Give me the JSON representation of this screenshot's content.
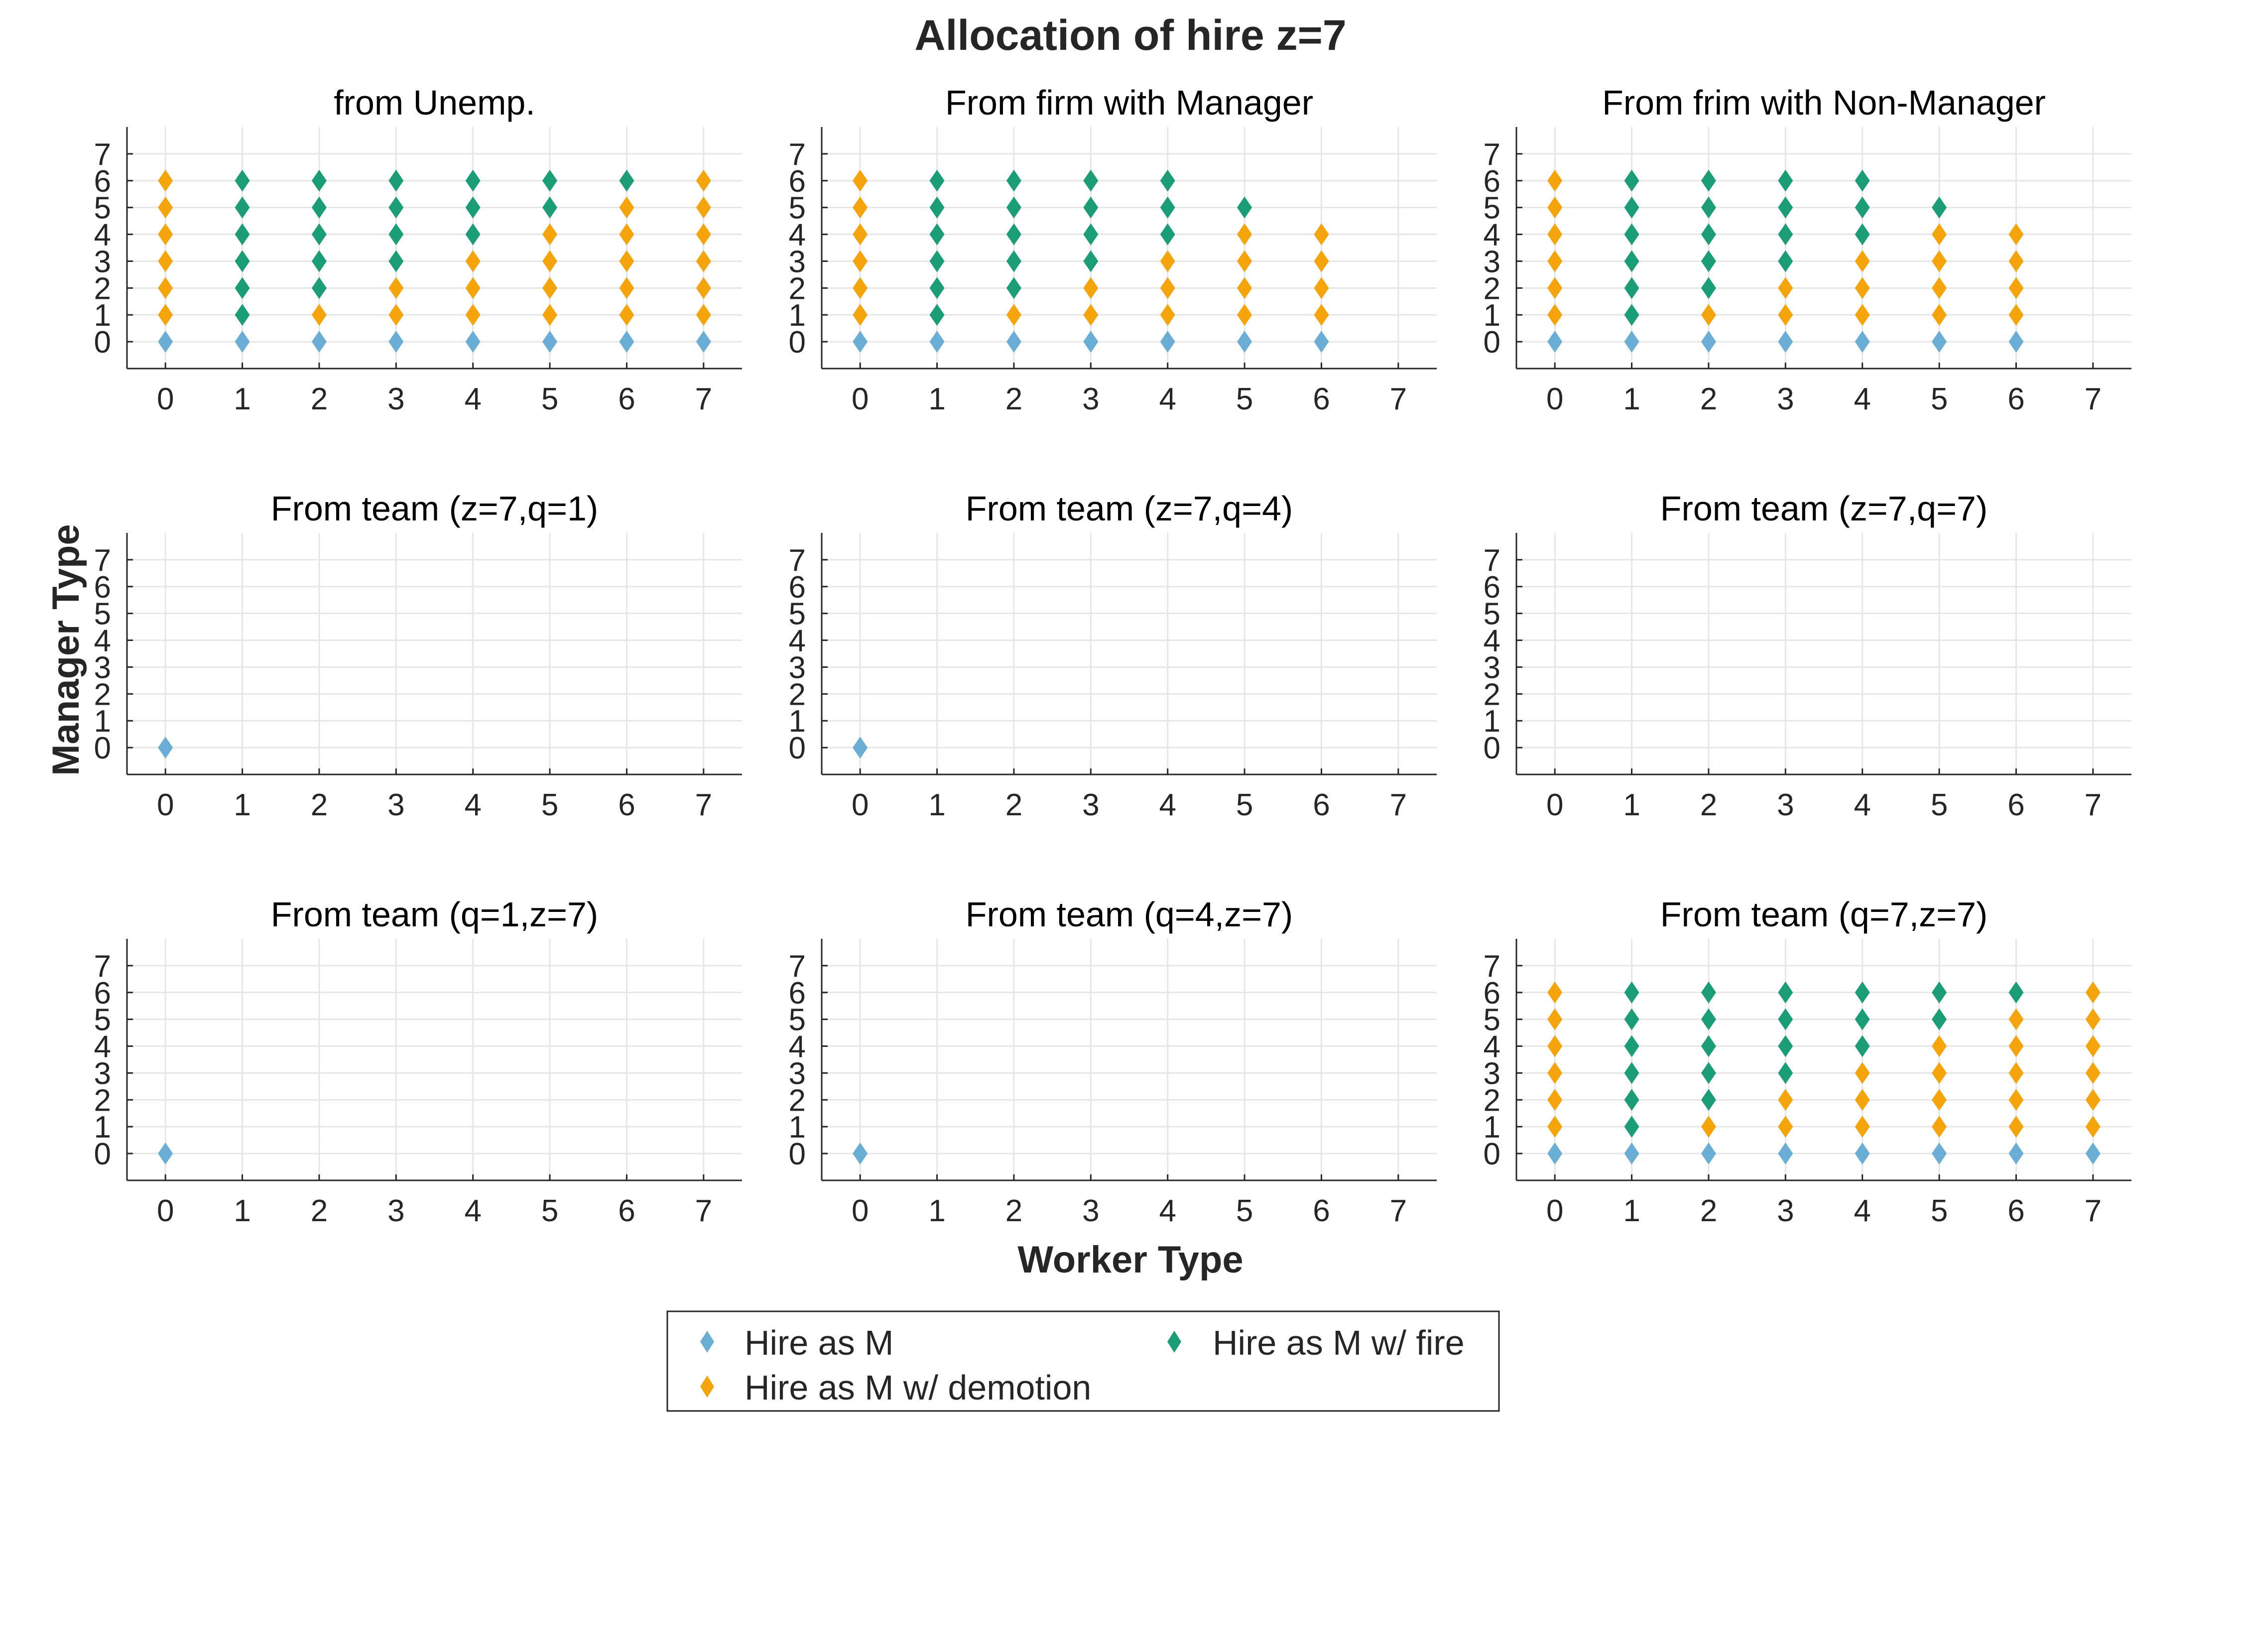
{
  "figure": {
    "title": "Allocation of hire z=7",
    "xlabel": "Worker Type",
    "ylabel": "Manager Type"
  },
  "legend": {
    "placement": "bottom-center",
    "entries": [
      {
        "key": "hire",
        "label": "Hire as M",
        "color": "#6aaed6"
      },
      {
        "key": "fire",
        "label": "Hire as M w/ fire",
        "color": "#1b9e77"
      },
      {
        "key": "demotion",
        "label": "Hire as M w/ demotion",
        "color": "#f5a40c"
      }
    ]
  },
  "marker_icon": "diamond-icon",
  "chart_data": [
    {
      "type": "scatter",
      "title": "from Unemp.",
      "xlim": [
        -0.5,
        7.5
      ],
      "ylim": [
        -1,
        8
      ],
      "grid": true,
      "xticks": [
        "0",
        "1",
        "2",
        "3",
        "4",
        "5",
        "6",
        "7"
      ],
      "yticks": [
        "0",
        "1",
        "2",
        "3",
        "4",
        "5",
        "6",
        "7"
      ],
      "series": {
        "hire": [
          [
            0,
            0
          ],
          [
            1,
            0
          ],
          [
            2,
            0
          ],
          [
            3,
            0
          ],
          [
            4,
            0
          ],
          [
            5,
            0
          ],
          [
            6,
            0
          ],
          [
            7,
            0
          ]
        ],
        "fire": [
          [
            1,
            1
          ],
          [
            1,
            2
          ],
          [
            1,
            3
          ],
          [
            1,
            4
          ],
          [
            1,
            5
          ],
          [
            1,
            6
          ],
          [
            2,
            2
          ],
          [
            2,
            3
          ],
          [
            2,
            4
          ],
          [
            2,
            5
          ],
          [
            2,
            6
          ],
          [
            3,
            3
          ],
          [
            3,
            4
          ],
          [
            3,
            5
          ],
          [
            3,
            6
          ],
          [
            4,
            4
          ],
          [
            4,
            5
          ],
          [
            4,
            6
          ],
          [
            5,
            5
          ],
          [
            5,
            6
          ],
          [
            6,
            6
          ]
        ],
        "demotion": [
          [
            0,
            1
          ],
          [
            0,
            2
          ],
          [
            0,
            3
          ],
          [
            0,
            4
          ],
          [
            0,
            5
          ],
          [
            0,
            6
          ],
          [
            2,
            1
          ],
          [
            3,
            1
          ],
          [
            3,
            2
          ],
          [
            4,
            1
          ],
          [
            4,
            2
          ],
          [
            4,
            3
          ],
          [
            5,
            1
          ],
          [
            5,
            2
          ],
          [
            5,
            3
          ],
          [
            5,
            4
          ],
          [
            6,
            1
          ],
          [
            6,
            2
          ],
          [
            6,
            3
          ],
          [
            6,
            4
          ],
          [
            6,
            5
          ],
          [
            7,
            1
          ],
          [
            7,
            2
          ],
          [
            7,
            3
          ],
          [
            7,
            4
          ],
          [
            7,
            5
          ],
          [
            7,
            6
          ]
        ]
      }
    },
    {
      "type": "scatter",
      "title": "From firm with Manager",
      "xlim": [
        -0.5,
        7.5
      ],
      "ylim": [
        -1,
        8
      ],
      "grid": true,
      "xticks": [
        "0",
        "1",
        "2",
        "3",
        "4",
        "5",
        "6",
        "7"
      ],
      "yticks": [
        "0",
        "1",
        "2",
        "3",
        "4",
        "5",
        "6",
        "7"
      ],
      "series": {
        "hire": [
          [
            0,
            0
          ],
          [
            1,
            0
          ],
          [
            2,
            0
          ],
          [
            3,
            0
          ],
          [
            4,
            0
          ],
          [
            5,
            0
          ],
          [
            6,
            0
          ]
        ],
        "fire": [
          [
            1,
            1
          ],
          [
            1,
            2
          ],
          [
            1,
            3
          ],
          [
            1,
            4
          ],
          [
            1,
            5
          ],
          [
            1,
            6
          ],
          [
            2,
            2
          ],
          [
            2,
            3
          ],
          [
            2,
            4
          ],
          [
            2,
            5
          ],
          [
            2,
            6
          ],
          [
            3,
            3
          ],
          [
            3,
            4
          ],
          [
            3,
            5
          ],
          [
            3,
            6
          ],
          [
            4,
            4
          ],
          [
            4,
            5
          ],
          [
            4,
            6
          ],
          [
            5,
            5
          ]
        ],
        "demotion": [
          [
            0,
            1
          ],
          [
            0,
            2
          ],
          [
            0,
            3
          ],
          [
            0,
            4
          ],
          [
            0,
            5
          ],
          [
            0,
            6
          ],
          [
            2,
            1
          ],
          [
            3,
            1
          ],
          [
            3,
            2
          ],
          [
            4,
            1
          ],
          [
            4,
            2
          ],
          [
            4,
            3
          ],
          [
            5,
            1
          ],
          [
            5,
            2
          ],
          [
            5,
            3
          ],
          [
            5,
            4
          ],
          [
            6,
            1
          ],
          [
            6,
            2
          ],
          [
            6,
            3
          ],
          [
            6,
            4
          ]
        ]
      }
    },
    {
      "type": "scatter",
      "title": "From frim with Non-Manager",
      "xlim": [
        -0.5,
        7.5
      ],
      "ylim": [
        -1,
        8
      ],
      "grid": true,
      "xticks": [
        "0",
        "1",
        "2",
        "3",
        "4",
        "5",
        "6",
        "7"
      ],
      "yticks": [
        "0",
        "1",
        "2",
        "3",
        "4",
        "5",
        "6",
        "7"
      ],
      "series": {
        "hire": [
          [
            0,
            0
          ],
          [
            1,
            0
          ],
          [
            2,
            0
          ],
          [
            3,
            0
          ],
          [
            4,
            0
          ],
          [
            5,
            0
          ],
          [
            6,
            0
          ]
        ],
        "fire": [
          [
            1,
            1
          ],
          [
            1,
            2
          ],
          [
            1,
            3
          ],
          [
            1,
            4
          ],
          [
            1,
            5
          ],
          [
            1,
            6
          ],
          [
            2,
            2
          ],
          [
            2,
            3
          ],
          [
            2,
            4
          ],
          [
            2,
            5
          ],
          [
            2,
            6
          ],
          [
            3,
            3
          ],
          [
            3,
            4
          ],
          [
            3,
            5
          ],
          [
            3,
            6
          ],
          [
            4,
            4
          ],
          [
            4,
            5
          ],
          [
            4,
            6
          ],
          [
            5,
            5
          ]
        ],
        "demotion": [
          [
            0,
            1
          ],
          [
            0,
            2
          ],
          [
            0,
            3
          ],
          [
            0,
            4
          ],
          [
            0,
            5
          ],
          [
            0,
            6
          ],
          [
            2,
            1
          ],
          [
            3,
            1
          ],
          [
            3,
            2
          ],
          [
            4,
            1
          ],
          [
            4,
            2
          ],
          [
            4,
            3
          ],
          [
            5,
            1
          ],
          [
            5,
            2
          ],
          [
            5,
            3
          ],
          [
            5,
            4
          ],
          [
            6,
            1
          ],
          [
            6,
            2
          ],
          [
            6,
            3
          ],
          [
            6,
            4
          ]
        ]
      }
    },
    {
      "type": "scatter",
      "title": "From team (z=7,q=1)",
      "xlim": [
        -0.5,
        7.5
      ],
      "ylim": [
        -1,
        8
      ],
      "grid": true,
      "xticks": [
        "0",
        "1",
        "2",
        "3",
        "4",
        "5",
        "6",
        "7"
      ],
      "yticks": [
        "0",
        "1",
        "2",
        "3",
        "4",
        "5",
        "6",
        "7"
      ],
      "series": {
        "hire": [
          [
            0,
            0
          ]
        ],
        "fire": [],
        "demotion": []
      }
    },
    {
      "type": "scatter",
      "title": "From team (z=7,q=4)",
      "xlim": [
        -0.5,
        7.5
      ],
      "ylim": [
        -1,
        8
      ],
      "grid": true,
      "xticks": [
        "0",
        "1",
        "2",
        "3",
        "4",
        "5",
        "6",
        "7"
      ],
      "yticks": [
        "0",
        "1",
        "2",
        "3",
        "4",
        "5",
        "6",
        "7"
      ],
      "series": {
        "hire": [
          [
            0,
            0
          ]
        ],
        "fire": [],
        "demotion": []
      }
    },
    {
      "type": "scatter",
      "title": "From team (z=7,q=7)",
      "xlim": [
        -0.5,
        7.5
      ],
      "ylim": [
        -1,
        8
      ],
      "grid": true,
      "xticks": [
        "0",
        "1",
        "2",
        "3",
        "4",
        "5",
        "6",
        "7"
      ],
      "yticks": [
        "0",
        "1",
        "2",
        "3",
        "4",
        "5",
        "6",
        "7"
      ],
      "series": {
        "hire": [],
        "fire": [],
        "demotion": []
      }
    },
    {
      "type": "scatter",
      "title": "From team (q=1,z=7)",
      "xlim": [
        -0.5,
        7.5
      ],
      "ylim": [
        -1,
        8
      ],
      "grid": true,
      "xticks": [
        "0",
        "1",
        "2",
        "3",
        "4",
        "5",
        "6",
        "7"
      ],
      "yticks": [
        "0",
        "1",
        "2",
        "3",
        "4",
        "5",
        "6",
        "7"
      ],
      "series": {
        "hire": [
          [
            0,
            0
          ]
        ],
        "fire": [],
        "demotion": []
      }
    },
    {
      "type": "scatter",
      "title": "From team (q=4,z=7)",
      "xlim": [
        -0.5,
        7.5
      ],
      "ylim": [
        -1,
        8
      ],
      "grid": true,
      "xticks": [
        "0",
        "1",
        "2",
        "3",
        "4",
        "5",
        "6",
        "7"
      ],
      "yticks": [
        "0",
        "1",
        "2",
        "3",
        "4",
        "5",
        "6",
        "7"
      ],
      "series": {
        "hire": [
          [
            0,
            0
          ]
        ],
        "fire": [],
        "demotion": []
      }
    },
    {
      "type": "scatter",
      "title": "From team (q=7,z=7)",
      "xlim": [
        -0.5,
        7.5
      ],
      "ylim": [
        -1,
        8
      ],
      "grid": true,
      "xticks": [
        "0",
        "1",
        "2",
        "3",
        "4",
        "5",
        "6",
        "7"
      ],
      "yticks": [
        "0",
        "1",
        "2",
        "3",
        "4",
        "5",
        "6",
        "7"
      ],
      "series": {
        "hire": [
          [
            0,
            0
          ],
          [
            1,
            0
          ],
          [
            2,
            0
          ],
          [
            3,
            0
          ],
          [
            4,
            0
          ],
          [
            5,
            0
          ],
          [
            6,
            0
          ],
          [
            7,
            0
          ]
        ],
        "fire": [
          [
            1,
            1
          ],
          [
            1,
            2
          ],
          [
            1,
            3
          ],
          [
            1,
            4
          ],
          [
            1,
            5
          ],
          [
            1,
            6
          ],
          [
            2,
            2
          ],
          [
            2,
            3
          ],
          [
            2,
            4
          ],
          [
            2,
            5
          ],
          [
            2,
            6
          ],
          [
            3,
            3
          ],
          [
            3,
            4
          ],
          [
            3,
            5
          ],
          [
            3,
            6
          ],
          [
            4,
            4
          ],
          [
            4,
            5
          ],
          [
            4,
            6
          ],
          [
            5,
            5
          ],
          [
            5,
            6
          ],
          [
            6,
            6
          ]
        ],
        "demotion": [
          [
            0,
            1
          ],
          [
            0,
            2
          ],
          [
            0,
            3
          ],
          [
            0,
            4
          ],
          [
            0,
            5
          ],
          [
            0,
            6
          ],
          [
            2,
            1
          ],
          [
            3,
            1
          ],
          [
            3,
            2
          ],
          [
            4,
            1
          ],
          [
            4,
            2
          ],
          [
            4,
            3
          ],
          [
            5,
            1
          ],
          [
            5,
            2
          ],
          [
            5,
            3
          ],
          [
            5,
            4
          ],
          [
            6,
            1
          ],
          [
            6,
            2
          ],
          [
            6,
            3
          ],
          [
            6,
            4
          ],
          [
            6,
            5
          ],
          [
            7,
            1
          ],
          [
            7,
            2
          ],
          [
            7,
            3
          ],
          [
            7,
            4
          ],
          [
            7,
            5
          ],
          [
            7,
            6
          ]
        ]
      }
    }
  ]
}
